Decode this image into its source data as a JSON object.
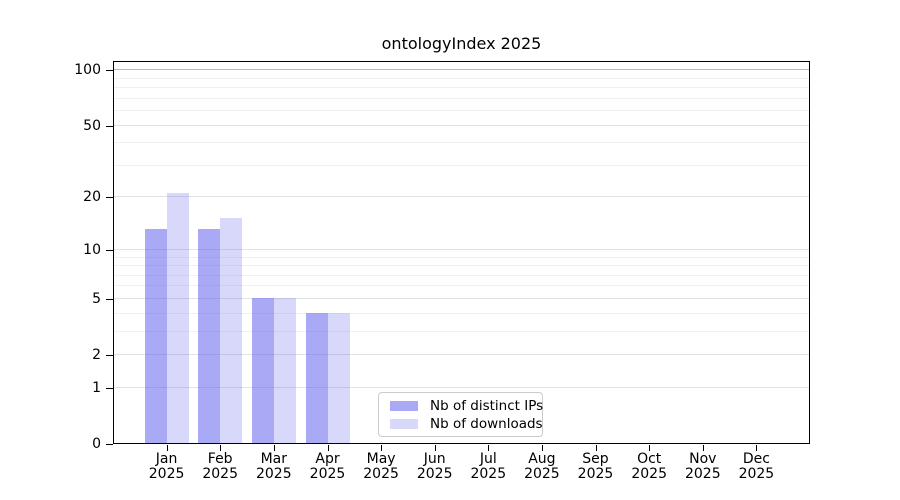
{
  "title": "ontologyIndex 2025",
  "chart_data": {
    "type": "bar",
    "title": "ontologyIndex 2025",
    "categories": [
      "Jan 2025",
      "Feb 2025",
      "Mar 2025",
      "Apr 2025",
      "May 2025",
      "Jun 2025",
      "Jul 2025",
      "Aug 2025",
      "Sep 2025",
      "Oct 2025",
      "Nov 2025",
      "Dec 2025"
    ],
    "series": [
      {
        "name": "Nb of distinct IPs",
        "fill": "rgba(98,98,239,0.55)",
        "values": [
          13,
          13,
          5,
          4,
          0,
          0,
          0,
          0,
          0,
          0,
          0,
          0
        ]
      },
      {
        "name": "Nb of downloads",
        "fill": "rgba(98,98,239,0.25)",
        "values": [
          21,
          15,
          5,
          4,
          0,
          0,
          0,
          0,
          0,
          0,
          0,
          0
        ]
      }
    ],
    "xlabel": "",
    "ylabel": "",
    "yscale": "log1p",
    "ylim": [
      0,
      112
    ],
    "yticks_major": [
      0,
      1,
      2,
      5,
      10,
      20,
      50,
      100
    ],
    "yticks_minor": [
      3,
      4,
      6,
      7,
      8,
      9,
      30,
      40,
      60,
      70,
      80,
      90
    ],
    "emphasized_gridline": 100,
    "grid": true,
    "legend_position": "lower center"
  },
  "x_axis": {
    "months": [
      "Jan",
      "Feb",
      "Mar",
      "Apr",
      "May",
      "Jun",
      "Jul",
      "Aug",
      "Sep",
      "Oct",
      "Nov",
      "Dec"
    ],
    "year": "2025"
  },
  "legend": {
    "items": [
      {
        "label": "Nb of distinct IPs",
        "swatch": "rgba(98,98,239,0.55)"
      },
      {
        "label": "Nb of downloads",
        "swatch": "rgba(98,98,239,0.25)"
      }
    ]
  },
  "colors": {
    "bar_base": "#6262ef",
    "series_distinct_ips": "#a9a9f7",
    "series_downloads": "#dcdcfa",
    "axis": "#000000",
    "grid_major": "#e2e2e2",
    "grid_minor": "#f0f0f0",
    "grid_emphasized": "#b8b8b8",
    "legend_border": "#cccccc",
    "text": "#000000"
  }
}
